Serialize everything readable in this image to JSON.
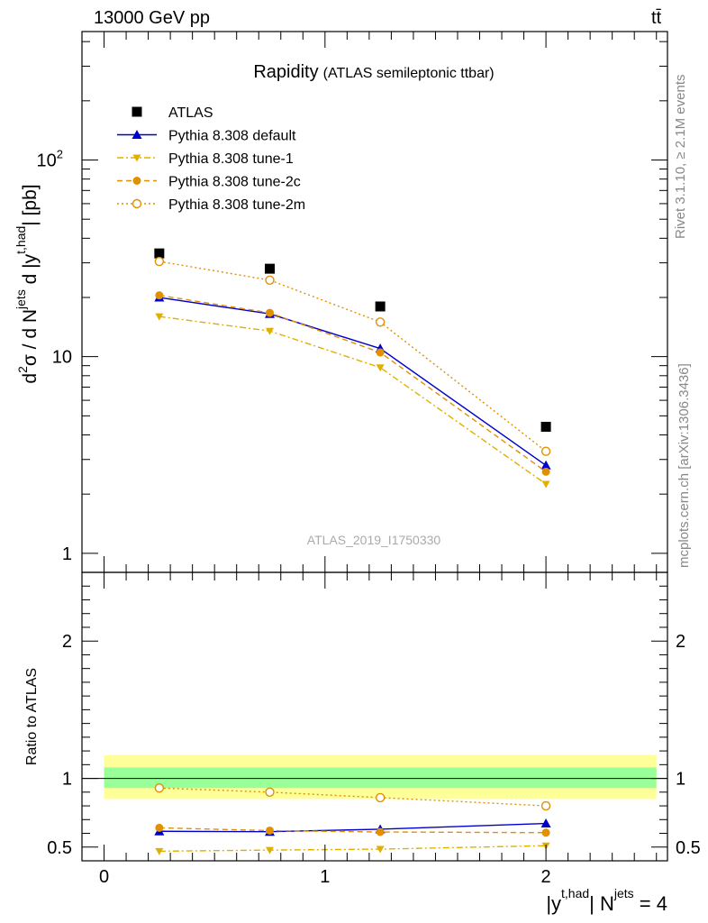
{
  "header": {
    "left": "13000 GeV pp",
    "right_base": "t",
    "right_bar": "t̄"
  },
  "side_labels": {
    "rivet": "Rivet 3.1.10, ≥ 2.1M events",
    "mcplots": "mcplots.cern.ch [arXiv:1306.3436]"
  },
  "chart_data": [
    {
      "type": "line",
      "title": "Rapidity",
      "subtitle": "(ATLAS semileptonic ttbar)",
      "watermark": "ATLAS_2019_I1750330",
      "ylabel": {
        "d2": "d",
        "sup2": "2",
        "sigma": "σ / d N",
        "jets": "jets",
        "dy": " d |y",
        "thad": "t,had",
        "pb": "| [pb]"
      },
      "yscale": "log",
      "ylim": [
        0.8,
        450
      ],
      "xlim": [
        -0.1,
        2.55
      ],
      "yticks": [
        {
          "value": 1,
          "label": "1"
        },
        {
          "value": 10,
          "label": "10"
        },
        {
          "value": 100,
          "label": "10",
          "sup": "2"
        }
      ],
      "legend_position": "top-left",
      "x": [
        0.25,
        0.75,
        1.25,
        2.0
      ],
      "series": [
        {
          "name": "ATLAS",
          "color": "#000000",
          "marker": "square",
          "line": "none",
          "values": [
            33.5,
            28.0,
            18.0,
            4.4
          ]
        },
        {
          "name": "Pythia 8.308 default",
          "color": "#0000cc",
          "marker": "triangle-up",
          "line": "solid",
          "values": [
            20.0,
            16.5,
            11.0,
            2.8
          ]
        },
        {
          "name": "Pythia 8.308 tune-1",
          "color": "#e0b000",
          "marker": "triangle-down",
          "line": "dashdot",
          "values": [
            16.0,
            13.5,
            8.8,
            2.25
          ]
        },
        {
          "name": "Pythia 8.308 tune-2c",
          "color": "#e09000",
          "marker": "circle-filled",
          "line": "dashed",
          "values": [
            20.5,
            16.7,
            10.5,
            2.6
          ]
        },
        {
          "name": "Pythia 8.308 tune-2m",
          "color": "#e09000",
          "marker": "circle-open",
          "line": "dotted",
          "values": [
            30.5,
            24.5,
            15.0,
            3.3
          ]
        }
      ]
    },
    {
      "type": "line",
      "ylabel": "Ratio to ATLAS",
      "xlabel": {
        "y": "|y",
        "thad": "t,had",
        "n": "| N",
        "jets": "jets",
        "eq": " = 4"
      },
      "ylim": [
        0.4,
        2.5
      ],
      "yticks": [
        {
          "value": 0.5,
          "label": "0.5"
        },
        {
          "value": 1,
          "label": "1"
        },
        {
          "value": 2,
          "label": "2"
        }
      ],
      "xticks": [
        {
          "value": 0,
          "label": "0"
        },
        {
          "value": 1,
          "label": "1"
        },
        {
          "value": 2,
          "label": "2"
        }
      ],
      "bands": {
        "yellow": {
          "color": "#ffff99",
          "lo": 0.85,
          "hi": 1.17
        },
        "green": {
          "color": "#99ff99",
          "lo": 0.93,
          "hi": 1.08
        }
      },
      "x": [
        0.25,
        0.75,
        1.25,
        2.0
      ],
      "series": [
        {
          "name": "Pythia 8.308 default",
          "values": [
            0.615,
            0.612,
            0.63,
            0.672
          ]
        },
        {
          "name": "Pythia 8.308 tune-1",
          "values": [
            0.47,
            0.478,
            0.485,
            0.51
          ]
        },
        {
          "name": "Pythia 8.308 tune-2c",
          "values": [
            0.64,
            0.62,
            0.61,
            0.605
          ]
        },
        {
          "name": "Pythia 8.308 tune-2m",
          "values": [
            0.93,
            0.9,
            0.86,
            0.8
          ]
        }
      ]
    }
  ]
}
